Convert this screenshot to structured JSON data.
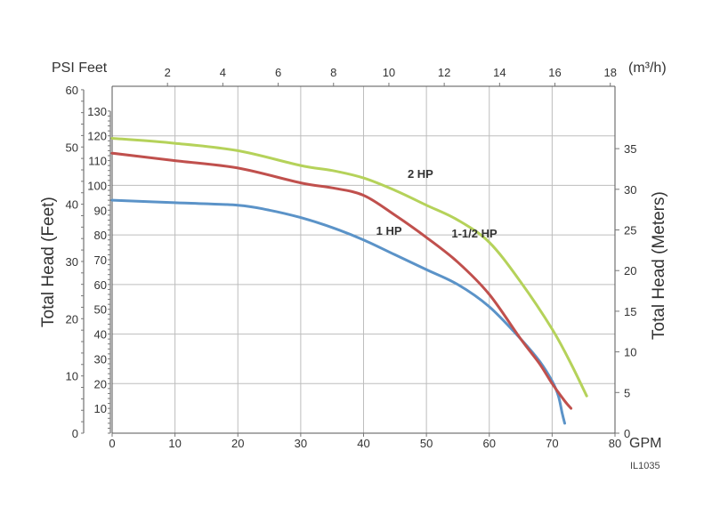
{
  "chart_data": {
    "type": "line",
    "top_axis": {
      "title": "PSI Feet",
      "unit": "(m³/h)",
      "ticks": [
        2,
        4,
        6,
        8,
        10,
        12,
        14,
        16,
        18
      ]
    },
    "x_axis": {
      "label": "GPM",
      "ticks": [
        0,
        10,
        20,
        30,
        40,
        50,
        60,
        70,
        80
      ],
      "range": [
        0,
        80
      ]
    },
    "left_outer_axis": {
      "title": "Total Head (Feet)",
      "ticks": [
        0,
        10,
        20,
        30,
        40,
        50,
        60
      ]
    },
    "left_inner_axis": {
      "ticks": [
        10,
        20,
        30,
        40,
        50,
        60,
        70,
        80,
        90,
        100,
        110,
        120,
        130
      ]
    },
    "right_axis": {
      "title": "Total Head (Meters)",
      "ticks": [
        0,
        5,
        10,
        15,
        20,
        25,
        30,
        35
      ]
    },
    "y_range_feet": [
      0,
      140
    ],
    "grid": true,
    "code": "IL1035",
    "series": [
      {
        "name": "1 HP",
        "color": "#5b93c8",
        "x": [
          0,
          10,
          20,
          25,
          30,
          35,
          40,
          45,
          50,
          55,
          60,
          65,
          68,
          70,
          71,
          71.6,
          72
        ],
        "y": [
          94,
          93,
          92,
          90,
          87,
          83,
          78,
          72,
          66,
          60,
          51,
          38,
          29,
          21,
          15,
          8,
          4
        ]
      },
      {
        "name": "1-1/2 HP",
        "color": "#c0504d",
        "x": [
          0,
          10,
          20,
          30,
          35,
          40,
          45,
          50,
          55,
          60,
          65,
          68,
          70,
          72,
          73
        ],
        "y": [
          113,
          110,
          107,
          101,
          99,
          96,
          88,
          79,
          69,
          56,
          38,
          28,
          20,
          13,
          10
        ]
      },
      {
        "name": "2 HP",
        "color": "#b5d25a",
        "x": [
          0,
          10,
          20,
          30,
          35,
          40,
          45,
          50,
          55,
          60,
          65,
          70,
          73,
          75.5
        ],
        "y": [
          119,
          117,
          114,
          108,
          106,
          103,
          98,
          92,
          86,
          77,
          61,
          42,
          28,
          15
        ]
      }
    ],
    "series_label_positions": {
      "1 HP": [
        42,
        80
      ],
      "1-1/2 HP": [
        54,
        79
      ],
      "2 HP": [
        47,
        103
      ]
    }
  }
}
